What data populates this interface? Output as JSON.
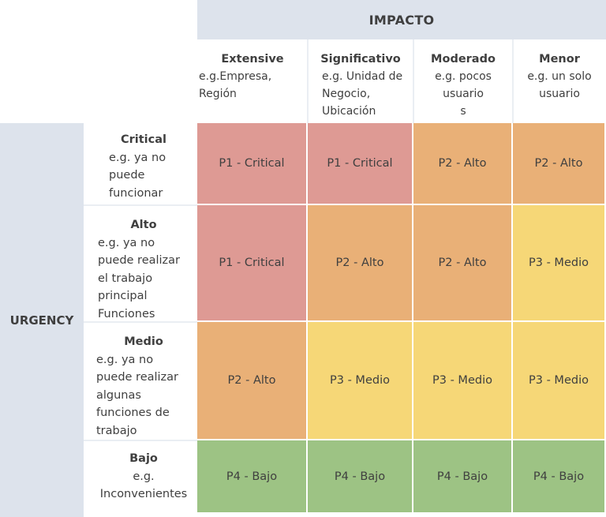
{
  "impact_label": "IMPACTO",
  "urgency_label": "URGENCY",
  "columns": [
    {
      "title": "Extensive",
      "desc": "e.g.Empresa, Región"
    },
    {
      "title": "Significativo",
      "desc": "e.g.  Unidad de\nNegocio,\nUbicación"
    },
    {
      "title": "Moderado",
      "desc": "e.g. pocos\nusuario\ns"
    },
    {
      "title": "Menor",
      "desc": "e.g. un solo\nusuario"
    }
  ],
  "rows": [
    {
      "title": "Critical",
      "desc": "e.g. ya no\npuede\nfuncionar"
    },
    {
      "title": "Alto",
      "desc": "e.g. ya no\npuede realizar\nel trabajo\nprincipal\n    Funciones"
    },
    {
      "title": "Medio",
      "desc": "e.g. ya no\npuede realizar\nalgunas\nfunciones de\ntrabajo"
    },
    {
      "title": "Bajo",
      "desc": "e.g.\nInconvenientes"
    }
  ],
  "cells": [
    [
      "P1 - Critical",
      "P1 - Critical",
      "P2 - Alto",
      "P2 - Alto"
    ],
    [
      "P1 - Critical",
      "P2 - Alto",
      "P2 - Alto",
      "P3 - Medio"
    ],
    [
      "P2 - Alto",
      "P3 - Medio",
      "P3 - Medio",
      "P3 - Medio"
    ],
    [
      "P4 - Bajo",
      "P4 - Bajo",
      "P4 - Bajo",
      "P4 - Bajo"
    ]
  ],
  "colors": {
    "P1": "#de9a94",
    "P2": "#e9b077",
    "P3": "#f6d777",
    "P4": "#9dc384"
  }
}
